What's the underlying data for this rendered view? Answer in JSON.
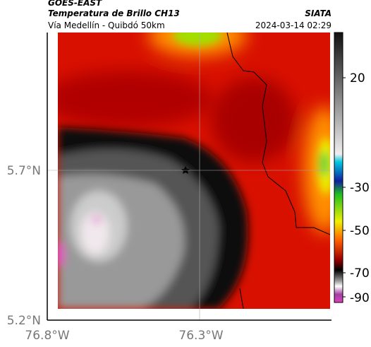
{
  "header": {
    "title": "GOES-EAST",
    "subtitle": "Temperatura de Brillo CH13",
    "source": "SIATA",
    "location": "Vía Medellín - Quibdó 50km",
    "timestamp": "2024-03-14 02:29"
  },
  "map": {
    "lat_labels": [
      "5.7°N",
      "5.2°N"
    ],
    "lon_labels": [
      "76.8°W",
      "76.3°W"
    ]
  },
  "colorbar": {
    "ticks": [
      20,
      -30,
      -50,
      -70,
      -90
    ]
  }
}
